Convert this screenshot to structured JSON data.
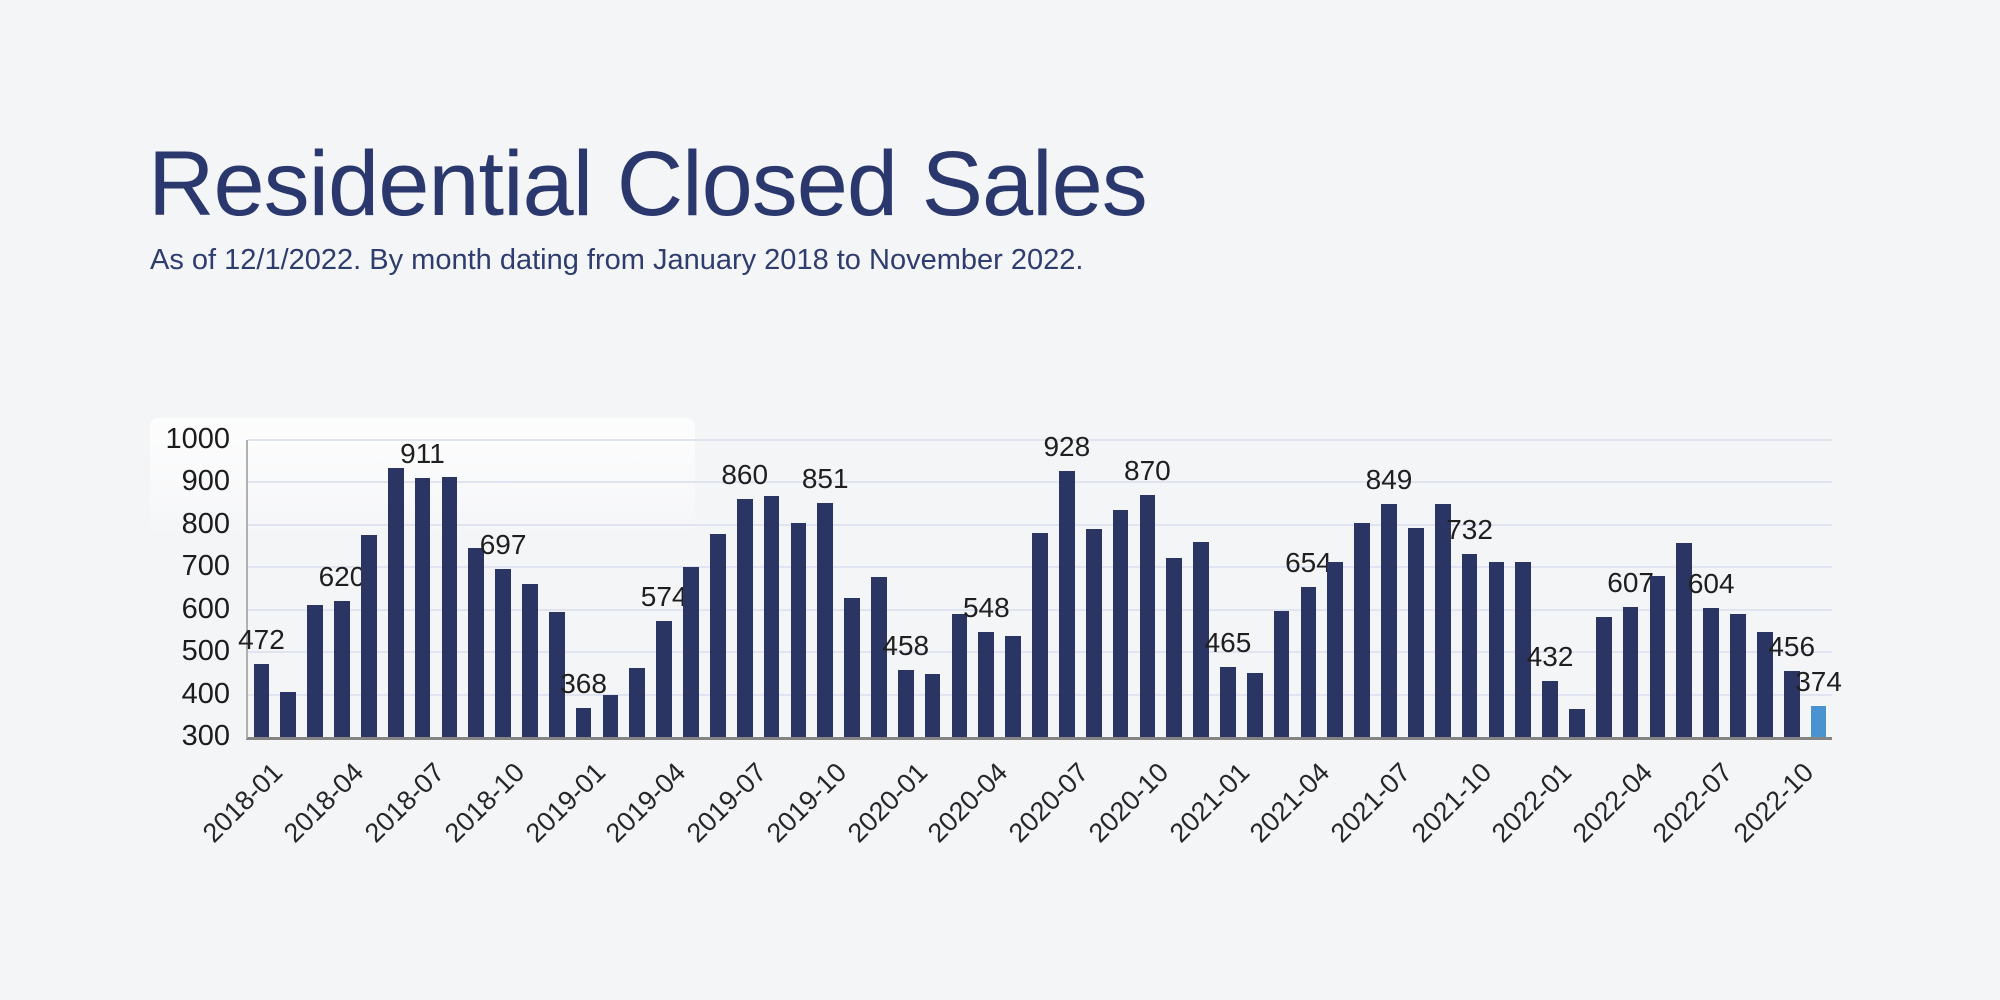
{
  "header": {
    "title": "Residential Closed Sales",
    "subtitle": "As of 12/1/2022. By month dating from January 2018 to November 2022."
  },
  "colors": {
    "background": "#f4f5f7",
    "title_text": "#2b386e",
    "subtitle_text": "#2e3d6e",
    "bar": "#2b3563",
    "bar_highlight": "#4b92d0",
    "gridline": "#dfe4f0",
    "axis_line": "#848484",
    "tick_text": "#1c1c1c",
    "bar_label_text": "#1f1f1f"
  },
  "chart_data": {
    "type": "bar",
    "title": "Residential Closed Sales",
    "xlabel": "",
    "ylabel": "",
    "ylim": [
      300,
      1000
    ],
    "y_ticks": [
      300,
      400,
      500,
      600,
      700,
      800,
      900,
      1000
    ],
    "grid": true,
    "legend_position": "none",
    "categories": [
      "2018-01",
      "2018-02",
      "2018-03",
      "2018-04",
      "2018-05",
      "2018-06",
      "2018-07",
      "2018-08",
      "2018-09",
      "2018-10",
      "2018-11",
      "2018-12",
      "2019-01",
      "2019-02",
      "2019-03",
      "2019-04",
      "2019-05",
      "2019-06",
      "2019-07",
      "2019-08",
      "2019-09",
      "2019-10",
      "2019-11",
      "2019-12",
      "2020-01",
      "2020-02",
      "2020-03",
      "2020-04",
      "2020-05",
      "2020-06",
      "2020-07",
      "2020-08",
      "2020-09",
      "2020-10",
      "2020-11",
      "2020-12",
      "2021-01",
      "2021-02",
      "2021-03",
      "2021-04",
      "2021-05",
      "2021-06",
      "2021-07",
      "2021-08",
      "2021-09",
      "2021-10",
      "2021-11",
      "2021-12",
      "2022-01",
      "2022-02",
      "2022-03",
      "2022-04",
      "2022-05",
      "2022-06",
      "2022-07",
      "2022-08",
      "2022-09",
      "2022-10",
      "2022-11"
    ],
    "values": [
      472,
      405,
      610,
      620,
      775,
      934,
      911,
      913,
      745,
      697,
      660,
      595,
      368,
      400,
      462,
      574,
      700,
      778,
      860,
      868,
      805,
      851,
      628,
      678,
      458,
      448,
      590,
      548,
      537,
      780,
      928,
      790,
      835,
      870,
      722,
      760,
      465,
      450,
      598,
      654,
      713,
      805,
      849,
      793,
      850,
      732,
      712,
      712,
      432,
      365,
      583,
      607,
      680,
      757,
      604,
      590,
      548,
      456,
      374
    ],
    "labeled_bar_indices": [
      0,
      3,
      6,
      9,
      12,
      15,
      18,
      21,
      24,
      27,
      30,
      33,
      36,
      39,
      42,
      45,
      48,
      51,
      54,
      57,
      58
    ],
    "x_tick_indices": [
      0,
      3,
      6,
      9,
      12,
      15,
      18,
      21,
      24,
      27,
      30,
      33,
      36,
      39,
      42,
      45,
      48,
      51,
      54,
      57
    ],
    "highlight_index": 58,
    "bar_width_fraction": 0.585
  }
}
